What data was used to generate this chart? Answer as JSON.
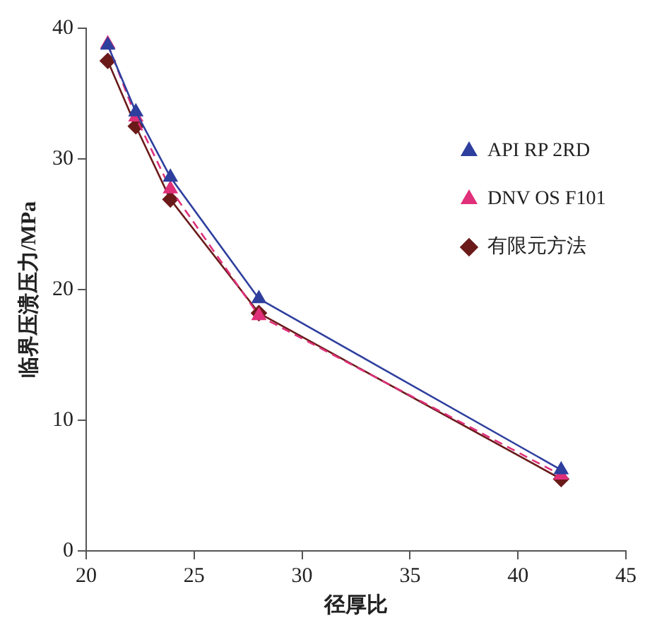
{
  "chart_data": {
    "type": "line",
    "xlabel": "径厚比",
    "ylabel": "临界压溃压力/MPa",
    "x": [
      21,
      22.3,
      23.9,
      28,
      42
    ],
    "xlim": [
      20,
      45
    ],
    "xticks": [
      20,
      25,
      30,
      35,
      40,
      45
    ],
    "ylim": [
      0,
      40
    ],
    "yticks": [
      0,
      10,
      20,
      30,
      40
    ],
    "grid": false,
    "legend": "top right",
    "series": [
      {
        "name": "API RP 2RD",
        "color": "#2e3f9e",
        "marker": "triangle",
        "line_style": "solid",
        "values": [
          38.7,
          33.6,
          28.6,
          19.3,
          6.2
        ]
      },
      {
        "name": "DNV OS F101",
        "color": "#e0307a",
        "marker": "triangle",
        "line_style": "dashed",
        "values": [
          38.8,
          33.2,
          27.7,
          18.0,
          5.8
        ]
      },
      {
        "name": "有限元方法",
        "color": "#6b1a1a",
        "marker": "diamond",
        "line_style": "solid",
        "values": [
          37.5,
          32.5,
          26.9,
          18.2,
          5.5
        ]
      }
    ]
  }
}
